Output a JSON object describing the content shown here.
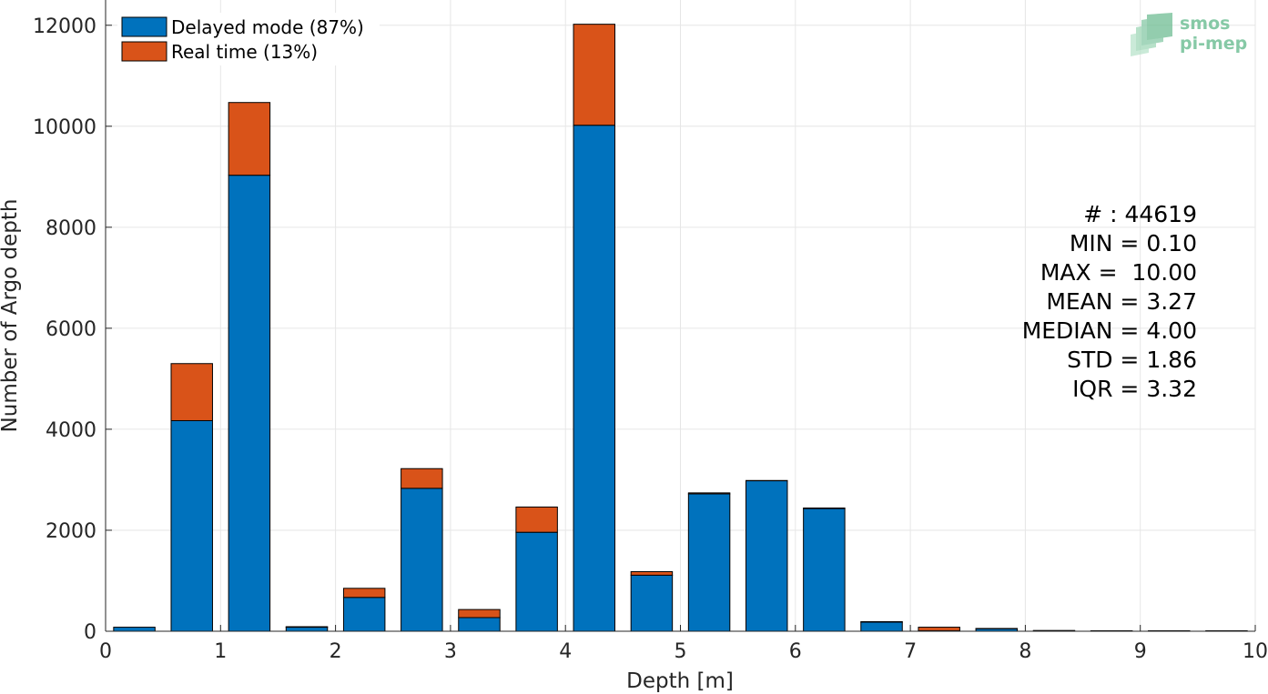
{
  "chart_data": {
    "type": "bar",
    "stacked": true,
    "xlabel": "Depth [m]",
    "ylabel": "Number of Argo depth",
    "xlim": [
      0,
      10
    ],
    "ylim": [
      0,
      12500
    ],
    "xticks": [
      "0",
      "1",
      "2",
      "3",
      "4",
      "5",
      "6",
      "7",
      "8",
      "9",
      "10"
    ],
    "yticks": [
      "0",
      "2000",
      "4000",
      "6000",
      "8000",
      "10000",
      "12000"
    ],
    "grid": true,
    "legend_position": "top-left",
    "bin_centers": [
      0.25,
      0.75,
      1.25,
      1.75,
      2.25,
      2.75,
      3.25,
      3.75,
      4.25,
      4.75,
      5.25,
      5.75,
      6.25,
      6.75,
      7.25,
      7.75,
      8.25,
      8.75,
      9.25,
      9.75
    ],
    "bin_width": 0.36,
    "series": [
      {
        "name": "Delayed mode (87%)",
        "color": "#0072bd",
        "values": [
          80,
          4170,
          9030,
          80,
          670,
          2830,
          270,
          1960,
          10020,
          1110,
          2720,
          2980,
          2430,
          180,
          10,
          50,
          15,
          10,
          10,
          10
        ]
      },
      {
        "name": "Real time (13%)",
        "color": "#d95319",
        "values": [
          0,
          1130,
          1440,
          10,
          180,
          390,
          160,
          500,
          2000,
          70,
          20,
          5,
          10,
          10,
          70,
          5,
          0,
          0,
          0,
          0
        ]
      }
    ],
    "annotations": [
      "# : 44619",
      "MIN = 0.10",
      "MAX =  10.00",
      "MEAN = 3.27",
      "MEDIAN = 4.00",
      "STD = 1.86",
      "IQR = 3.32"
    ]
  },
  "logo": {
    "line1": "smos",
    "line2": "pi-mep"
  }
}
